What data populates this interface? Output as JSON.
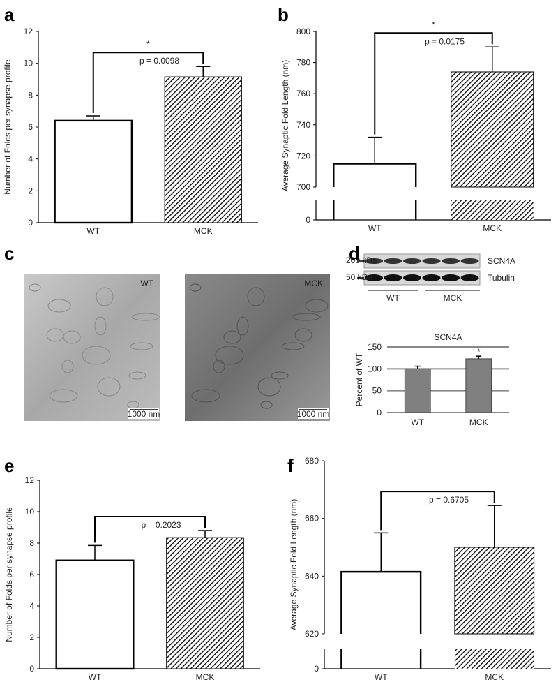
{
  "chart_data": [
    {
      "type": "bar",
      "panel": "a",
      "ylabel": "Number of Folds per synapse profile",
      "categories": [
        "WT",
        "MCK"
      ],
      "values": [
        6.4,
        9.15
      ],
      "errors": [
        0.3,
        0.65
      ],
      "colors": [
        "#ffffff",
        "#000000"
      ],
      "hatched": [
        false,
        true
      ],
      "ylim": [
        0,
        12
      ],
      "yticks": [
        0,
        2,
        4,
        6,
        8,
        10,
        12
      ],
      "star": "*",
      "p": "p = 0.0098"
    },
    {
      "type": "bar",
      "panel": "b",
      "ylabel": "Average Synaptic Fold Length (nm)",
      "categories": [
        "WT",
        "MCK"
      ],
      "values": [
        715,
        774
      ],
      "errors": [
        17,
        16
      ],
      "colors": [
        "#ffffff",
        "#000000"
      ],
      "hatched": [
        false,
        true
      ],
      "ylim": [
        700,
        800
      ],
      "yticks": [
        0,
        700,
        720,
        740,
        760,
        780,
        800
      ],
      "axis_break": true,
      "star": "*",
      "p": "p = 0.0175"
    },
    {
      "type": "bar",
      "title": "SCN4A",
      "ylabel": "Percent of WT",
      "categories": [
        "WT",
        "MCK"
      ],
      "values": [
        100,
        123
      ],
      "errors": [
        6,
        6
      ],
      "colors": [
        "#808080",
        "#808080"
      ],
      "hatched": [
        false,
        false
      ],
      "ylim": [
        0,
        150
      ],
      "yticks": [
        0,
        50,
        100,
        150
      ],
      "grid": true,
      "marker_star": "*"
    },
    {
      "type": "bar",
      "panel": "e",
      "ylabel": "Number of Folds per synapse profile",
      "categories": [
        "WT",
        "MCK"
      ],
      "values": [
        6.9,
        8.35
      ],
      "errors": [
        0.95,
        0.45
      ],
      "colors": [
        "#ffffff",
        "#000000"
      ],
      "hatched": [
        false,
        true
      ],
      "ylim": [
        0,
        12
      ],
      "yticks": [
        0,
        2,
        4,
        6,
        8,
        10,
        12
      ],
      "p": "p = 0.2023"
    },
    {
      "type": "bar",
      "panel": "f",
      "ylabel": "Average Synaptic Fold Length (nm)",
      "categories": [
        "WT",
        "MCK"
      ],
      "values": [
        641.5,
        650
      ],
      "errors": [
        13.5,
        14.5
      ],
      "colors": [
        "#ffffff",
        "#000000"
      ],
      "hatched": [
        false,
        true
      ],
      "ylim": [
        620,
        680
      ],
      "yticks": [
        0,
        620,
        640,
        660,
        680
      ],
      "axis_break": true,
      "p": "p = 0.6705"
    }
  ],
  "micrographs": {
    "panel": "c",
    "images": [
      {
        "label": "WT",
        "scale": "1000 nm"
      },
      {
        "label": "MCK",
        "scale": "1000 nm"
      }
    ]
  },
  "blot": {
    "panel": "d",
    "bands": [
      {
        "name": "SCN4A",
        "marker": "200 kDa"
      },
      {
        "name": "Tubulin",
        "marker": "50 kDa"
      }
    ],
    "groups": [
      "WT",
      "MCK"
    ]
  }
}
